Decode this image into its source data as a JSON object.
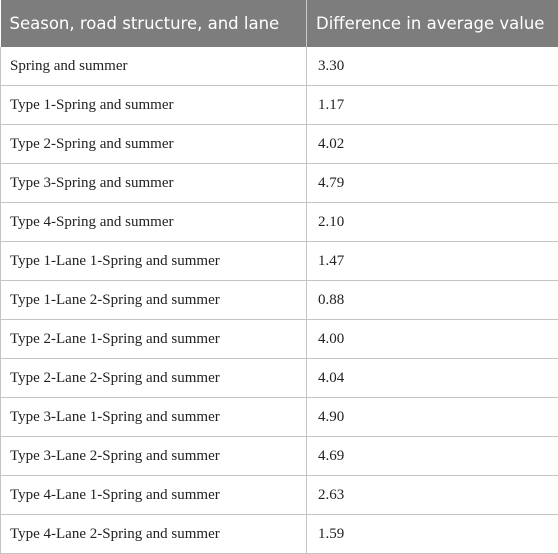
{
  "table": {
    "headers": [
      "Season, road structure, and lane",
      "Difference in average value"
    ],
    "rows": [
      {
        "label": "Spring and summer",
        "value": "3.30"
      },
      {
        "label": "Type 1-Spring and summer",
        "value": "1.17"
      },
      {
        "label": "Type 2-Spring and summer",
        "value": "4.02"
      },
      {
        "label": "Type 3-Spring and summer",
        "value": "4.79"
      },
      {
        "label": "Type 4-Spring and summer",
        "value": "2.10"
      },
      {
        "label": "Type 1-Lane 1-Spring and summer",
        "value": "1.47"
      },
      {
        "label": "Type 1-Lane 2-Spring and summer",
        "value": "0.88"
      },
      {
        "label": "Type 2-Lane 1-Spring and summer",
        "value": "4.00"
      },
      {
        "label": "Type 2-Lane 2-Spring and summer",
        "value": "4.04"
      },
      {
        "label": "Type 3-Lane 1-Spring and summer",
        "value": "4.90"
      },
      {
        "label": "Type 3-Lane 2-Spring and summer",
        "value": "4.69"
      },
      {
        "label": "Type 4-Lane 1-Spring and summer",
        "value": "2.63"
      },
      {
        "label": "Type 4-Lane 2-Spring and summer",
        "value": "1.59"
      }
    ]
  }
}
